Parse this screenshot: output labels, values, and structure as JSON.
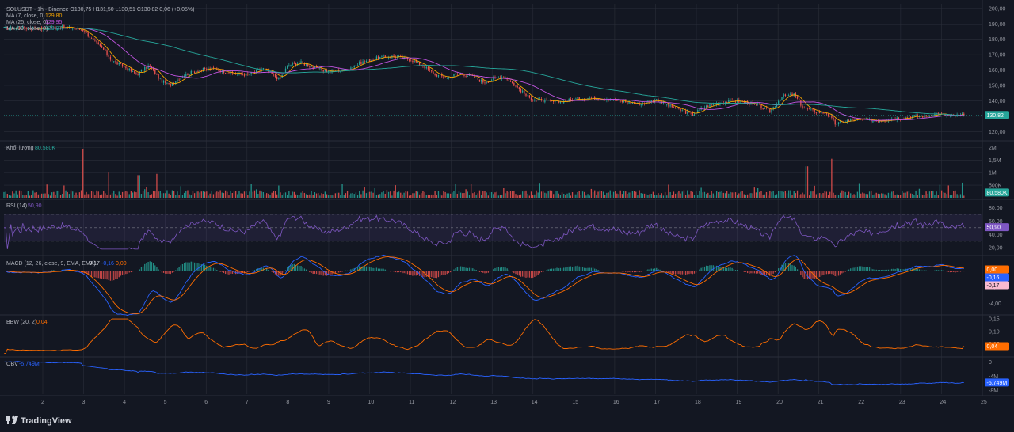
{
  "colors": {
    "background": "#131722",
    "grid": "#2a2e39",
    "up": "#26a69a",
    "down": "#ef5350",
    "ma7": "#f7a600",
    "ma25": "#c054e0",
    "ma99": "#26a69a",
    "rsi": "#7e57c2",
    "macd_line": "#2962ff",
    "signal_line": "#ff6d00",
    "bbw": "#ff6d00",
    "obv": "#2962ff"
  },
  "watermark": "TradingView",
  "chart_data": [
    {
      "type": "candlestick",
      "title": "SOLUSDT · 1h · Binance",
      "ohlc_text": "O130,75 H131,50 L130,51 C130,82 0,06 (+0,05%)",
      "ma_labels": [
        {
          "name": "MA (7, close, 0)",
          "value": "129,80",
          "color_key": "ma7"
        },
        {
          "name": "MA (25, close, 0)",
          "value": "129,95",
          "color_key": "ma25"
        },
        {
          "name": "MA (99, close, 0)",
          "value": "129,97",
          "color_key": "ma99"
        }
      ],
      "last_price_label": "130,82",
      "y_ticks": [
        "200,00",
        "190,00",
        "180,00",
        "170,00",
        "160,00",
        "150,00",
        "140,00",
        "130,00",
        "120,00"
      ],
      "ylim": [
        115,
        203
      ],
      "x_ticks": [
        "2",
        "3",
        "4",
        "5",
        "6",
        "7",
        "8",
        "9",
        "10",
        "11",
        "12",
        "13",
        "14",
        "15",
        "16",
        "17",
        "18",
        "19",
        "20",
        "21",
        "22",
        "23",
        "24",
        "25"
      ],
      "xlim": [
        1.05,
        25
      ],
      "anchors": [
        [
          1.05,
          187
        ],
        [
          1.5,
          187.5
        ],
        [
          2.0,
          187
        ],
        [
          2.5,
          188
        ],
        [
          3.0,
          186
        ],
        [
          3.2,
          180
        ],
        [
          3.5,
          173
        ],
        [
          3.7,
          166
        ],
        [
          4.0,
          162
        ],
        [
          4.3,
          157
        ],
        [
          4.6,
          163
        ],
        [
          4.9,
          153
        ],
        [
          5.1,
          150
        ],
        [
          5.4,
          156
        ],
        [
          5.8,
          160
        ],
        [
          6.2,
          161
        ],
        [
          6.6,
          158
        ],
        [
          7.0,
          157
        ],
        [
          7.4,
          161
        ],
        [
          7.8,
          154
        ],
        [
          8.0,
          163
        ],
        [
          8.3,
          165
        ],
        [
          8.7,
          161
        ],
        [
          9.0,
          159
        ],
        [
          9.4,
          160
        ],
        [
          9.8,
          165
        ],
        [
          10.2,
          168
        ],
        [
          10.6,
          169
        ],
        [
          11.0,
          167
        ],
        [
          11.3,
          163
        ],
        [
          11.6,
          157
        ],
        [
          11.9,
          155
        ],
        [
          12.2,
          158
        ],
        [
          12.5,
          156
        ],
        [
          12.8,
          152
        ],
        [
          13.0,
          154
        ],
        [
          13.3,
          156
        ],
        [
          13.6,
          149
        ],
        [
          13.9,
          142
        ],
        [
          14.2,
          140
        ],
        [
          14.6,
          139
        ],
        [
          15.0,
          141
        ],
        [
          15.4,
          142
        ],
        [
          15.9,
          141
        ],
        [
          16.3,
          139
        ],
        [
          16.6,
          138
        ],
        [
          17.0,
          141
        ],
        [
          17.3,
          137
        ],
        [
          17.6,
          134
        ],
        [
          17.9,
          131
        ],
        [
          18.2,
          136
        ],
        [
          18.6,
          139
        ],
        [
          18.9,
          140
        ],
        [
          19.2,
          139
        ],
        [
          19.5,
          137
        ],
        [
          19.8,
          133
        ],
        [
          20.1,
          143
        ],
        [
          20.4,
          144
        ],
        [
          20.6,
          136
        ],
        [
          20.9,
          133
        ],
        [
          21.2,
          132
        ],
        [
          21.4,
          125
        ],
        [
          21.7,
          127
        ],
        [
          22.0,
          128
        ],
        [
          22.3,
          127
        ],
        [
          22.7,
          128
        ],
        [
          23.0,
          129
        ],
        [
          23.3,
          130
        ],
        [
          23.6,
          130
        ],
        [
          23.9,
          132
        ],
        [
          24.2,
          130
        ],
        [
          24.55,
          130.82
        ]
      ]
    },
    {
      "type": "bar",
      "title": "Khối lượng",
      "value_label": "80,580K",
      "y_ticks": [
        "2M",
        "1,5M",
        "1M",
        "500K"
      ],
      "ylim": [
        0,
        2200000
      ],
      "spikes": [
        [
          3.0,
          1950000
        ],
        [
          3.6,
          1000000
        ],
        [
          4.35,
          900000
        ],
        [
          4.8,
          950000
        ],
        [
          20.7,
          1250000
        ],
        [
          21.3,
          1550000
        ]
      ]
    },
    {
      "type": "line",
      "title": "RSI (14)",
      "value_label": "50,90",
      "y_ticks": [
        "80,00",
        "60,00",
        "40,00",
        "20,00"
      ],
      "ylim": [
        12,
        90
      ],
      "band": [
        30,
        70
      ]
    },
    {
      "type": "line",
      "title": "MACD (12, 26, close, 9, EMA, EMA)",
      "values_text": [
        "-0,17",
        "-0,16",
        "0,00"
      ],
      "y_ticks": [
        "0,00",
        "-2,00",
        "-4,00"
      ],
      "ylim": [
        -5.2,
        1.6
      ],
      "value_labels": [
        "0,00",
        "-0,16",
        "-0,17"
      ]
    },
    {
      "type": "line",
      "title": "BBW (20, 2)",
      "value_label": "0,04",
      "y_ticks": [
        "0,15",
        "0,10",
        "0,05"
      ],
      "ylim": [
        0.0,
        0.16
      ]
    },
    {
      "type": "line",
      "title": "OBV",
      "value_label": "-5,749M",
      "y_ticks": [
        "0",
        "-4M",
        "-8M"
      ],
      "ylim": [
        -9,
        1
      ]
    }
  ]
}
